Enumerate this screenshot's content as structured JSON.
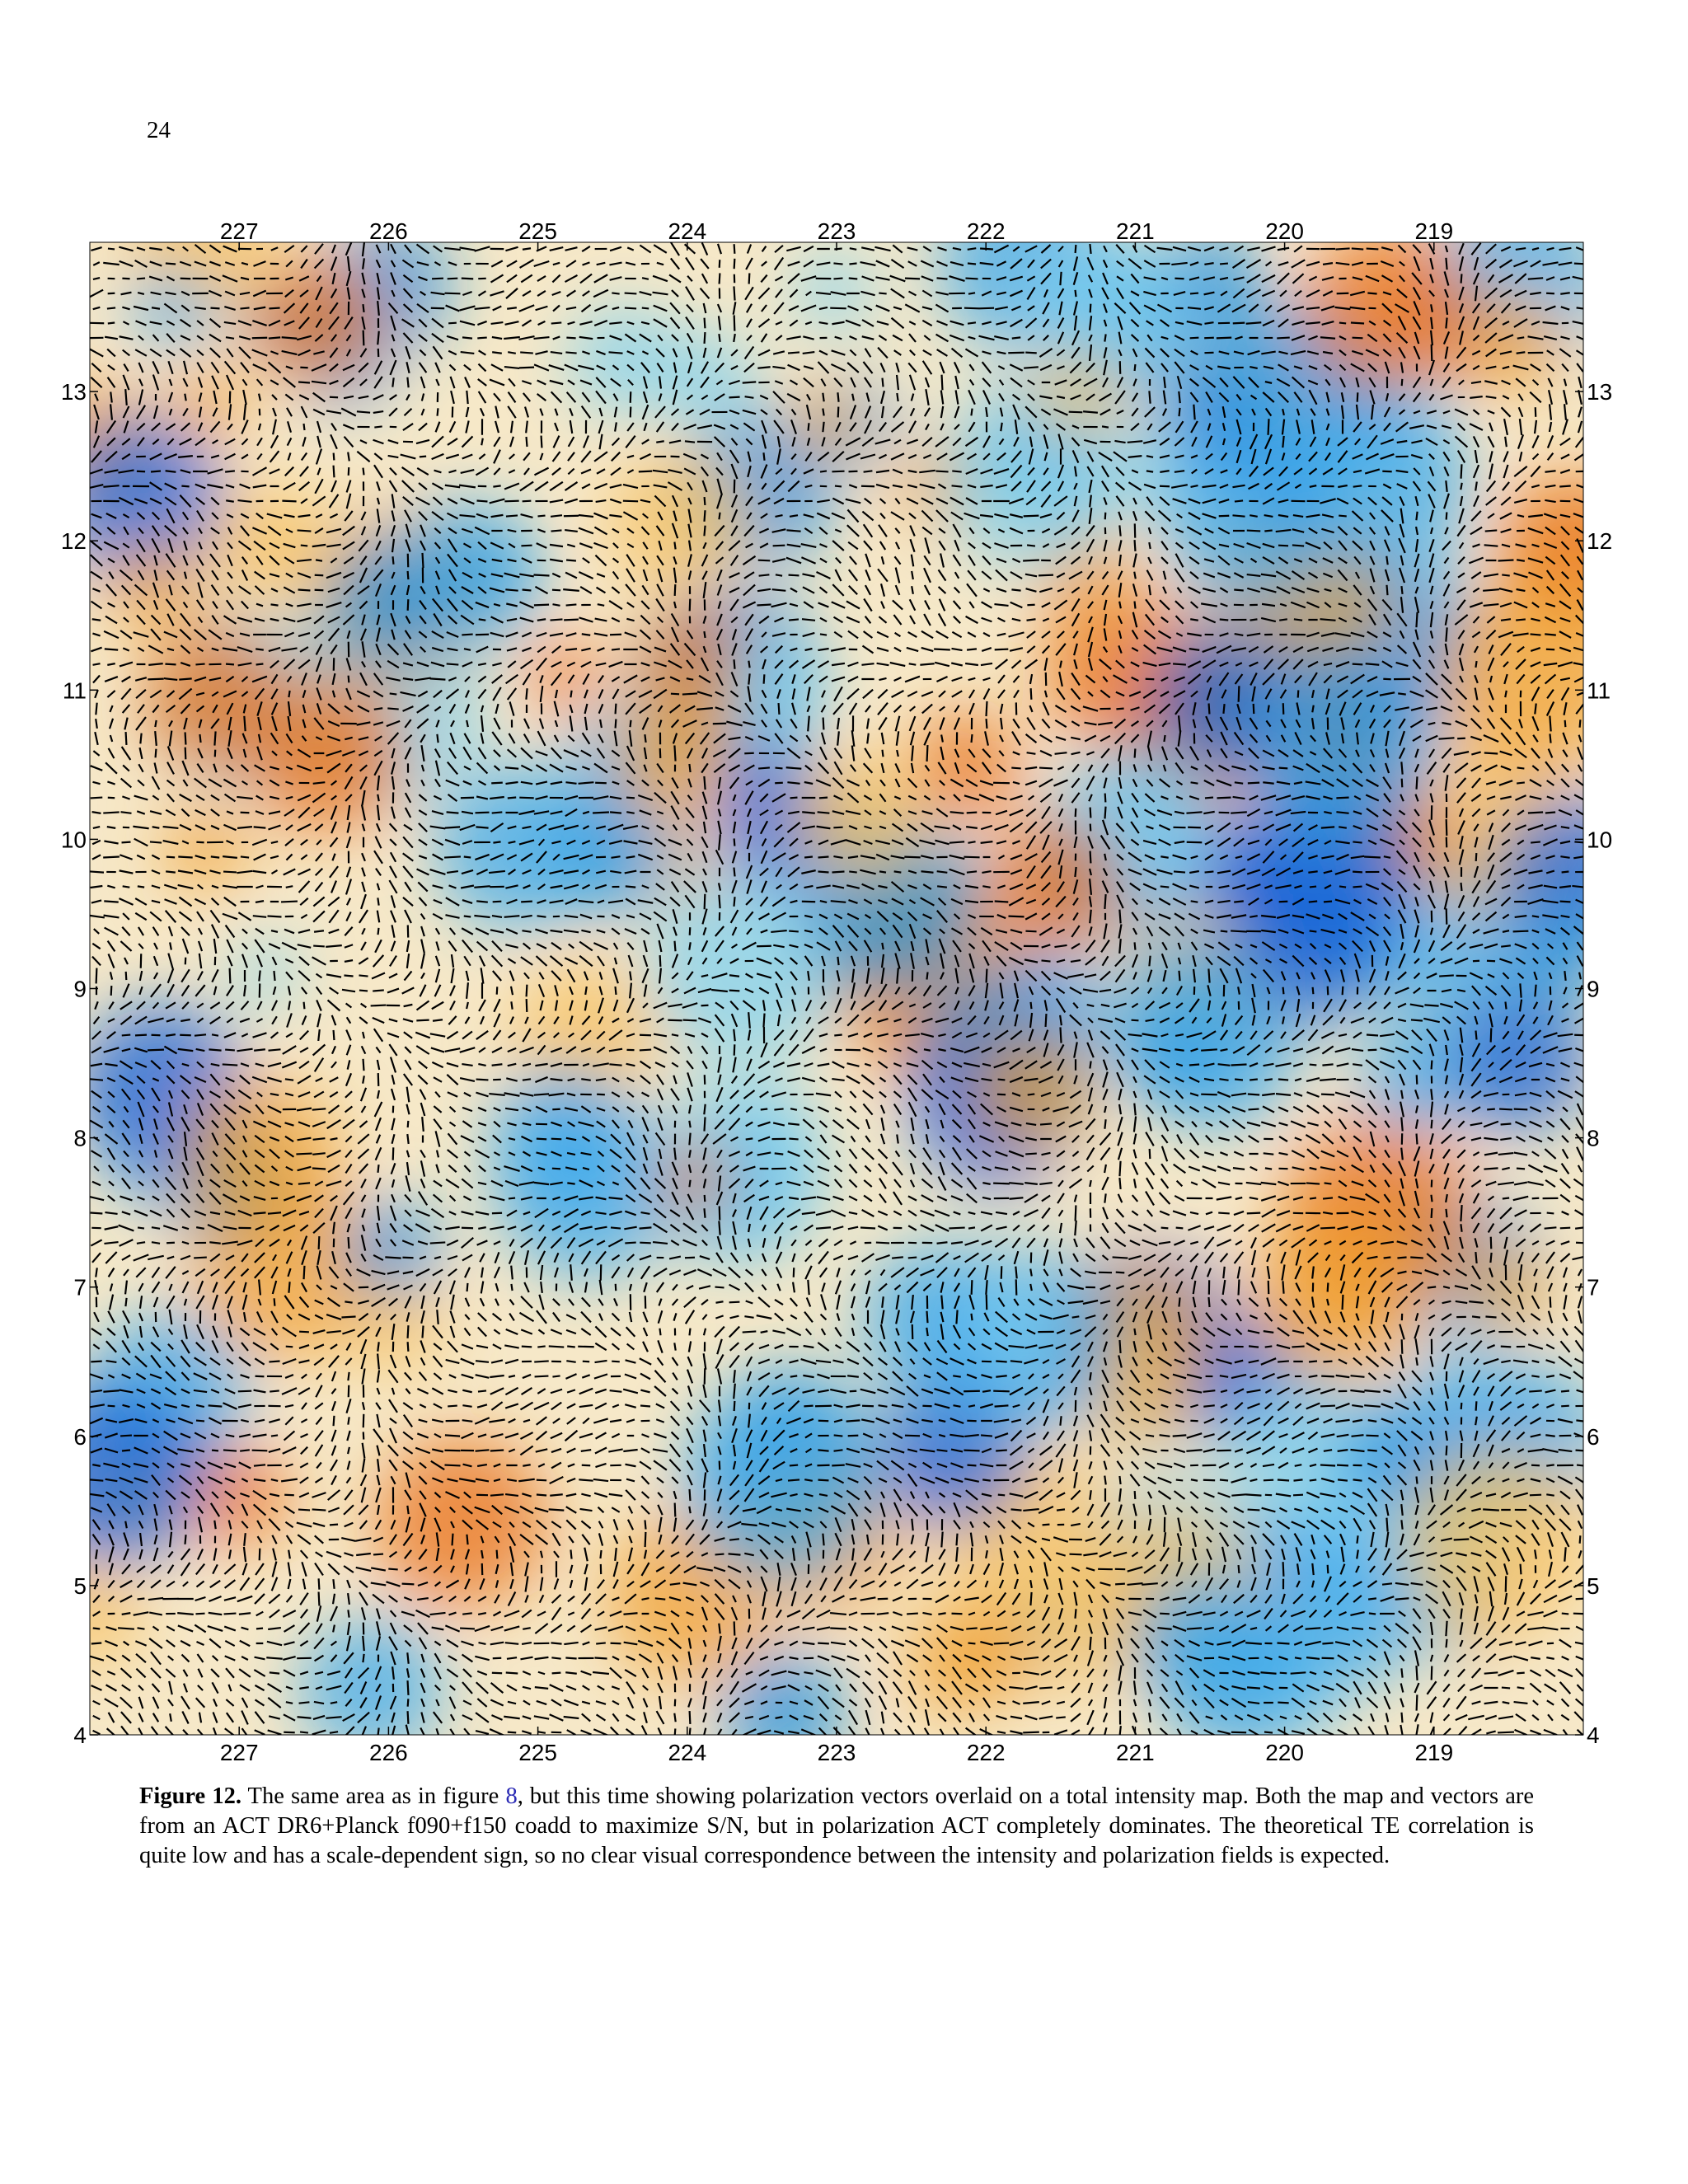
{
  "page_number": "24",
  "figure": {
    "xlim": [
      228,
      218
    ],
    "ylim": [
      4,
      14
    ],
    "xticks": [
      227,
      226,
      225,
      224,
      223,
      222,
      221,
      220,
      219
    ],
    "yticks": [
      4,
      5,
      6,
      7,
      8,
      9,
      10,
      11,
      12,
      13
    ],
    "caption": {
      "label": "Figure 12.",
      "text_before": "The same area as in figure ",
      "ref": "8",
      "text_after": ", but this time showing polarization vectors overlaid on a total intensity map. Both the map and vectors are from an ACT DR6+Planck f090+f150 coadd to maximize S/N, but in polarization ACT completely dominates. The theoretical TE correlation is quite low and has a scale-dependent sign, so no clear visual correspondence between the intensity and polarization fields is expected."
    }
  }
}
